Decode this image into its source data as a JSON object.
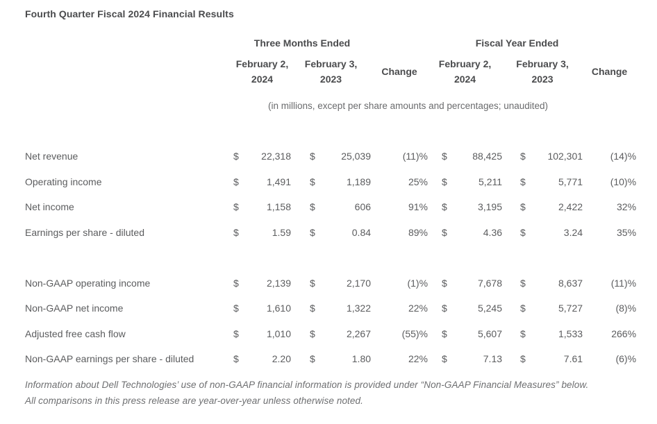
{
  "title": "Fourth Quarter Fiscal 2024 Financial Results",
  "table": {
    "group_headers": {
      "three_months": "Three Months Ended",
      "fiscal_year": "Fiscal Year Ended"
    },
    "column_headers": {
      "tm_2024": {
        "line1": "February 2,",
        "line2": "2024"
      },
      "tm_2023": {
        "line1": "February 3,",
        "line2": "2023"
      },
      "change": "Change",
      "fy_2024": {
        "line1": "February 2,",
        "line2": "2024"
      },
      "fy_2023": {
        "line1": "February 3,",
        "line2": "2023"
      }
    },
    "units_note": "(in millions, except per share amounts and percentages; unaudited)",
    "currency_symbol": "$",
    "sections": [
      {
        "rows": [
          {
            "label": "Net revenue",
            "q1": "22,318",
            "q2": "25,039",
            "q_change": "(11)%",
            "y1": "88,425",
            "y2": "102,301",
            "y_change": "(14)%"
          },
          {
            "label": "Operating income",
            "q1": "1,491",
            "q2": "1,189",
            "q_change": "25%",
            "y1": "5,211",
            "y2": "5,771",
            "y_change": "(10)%"
          },
          {
            "label": "Net income",
            "q1": "1,158",
            "q2": "606",
            "q_change": "91%",
            "y1": "3,195",
            "y2": "2,422",
            "y_change": "32%"
          },
          {
            "label": "Earnings per share - diluted",
            "q1": "1.59",
            "q2": "0.84",
            "q_change": "89%",
            "y1": "4.36",
            "y2": "3.24",
            "y_change": "35%"
          }
        ]
      },
      {
        "rows": [
          {
            "label": "Non-GAAP operating income",
            "q1": "2,139",
            "q2": "2,170",
            "q_change": "(1)%",
            "y1": "7,678",
            "y2": "8,637",
            "y_change": "(11)%"
          },
          {
            "label": "Non-GAAP net income",
            "q1": "1,610",
            "q2": "1,322",
            "q_change": "22%",
            "y1": "5,245",
            "y2": "5,727",
            "y_change": "(8)%"
          },
          {
            "label": "Adjusted free cash flow",
            "q1": "1,010",
            "q2": "2,267",
            "q_change": "(55)%",
            "y1": "5,607",
            "y2": "1,533",
            "y_change": "266%"
          },
          {
            "label": "Non-GAAP earnings per share - diluted",
            "q1": "2.20",
            "q2": "1.80",
            "q_change": "22%",
            "y1": "7.13",
            "y2": "7.61",
            "y_change": "(6)%"
          }
        ]
      }
    ]
  },
  "footnotes": [
    "Information about Dell Technologies’ use of non-GAAP financial information is provided under “Non-GAAP Financial Measures” below.",
    "All comparisons in this press release are year-over-year unless otherwise noted."
  ]
}
